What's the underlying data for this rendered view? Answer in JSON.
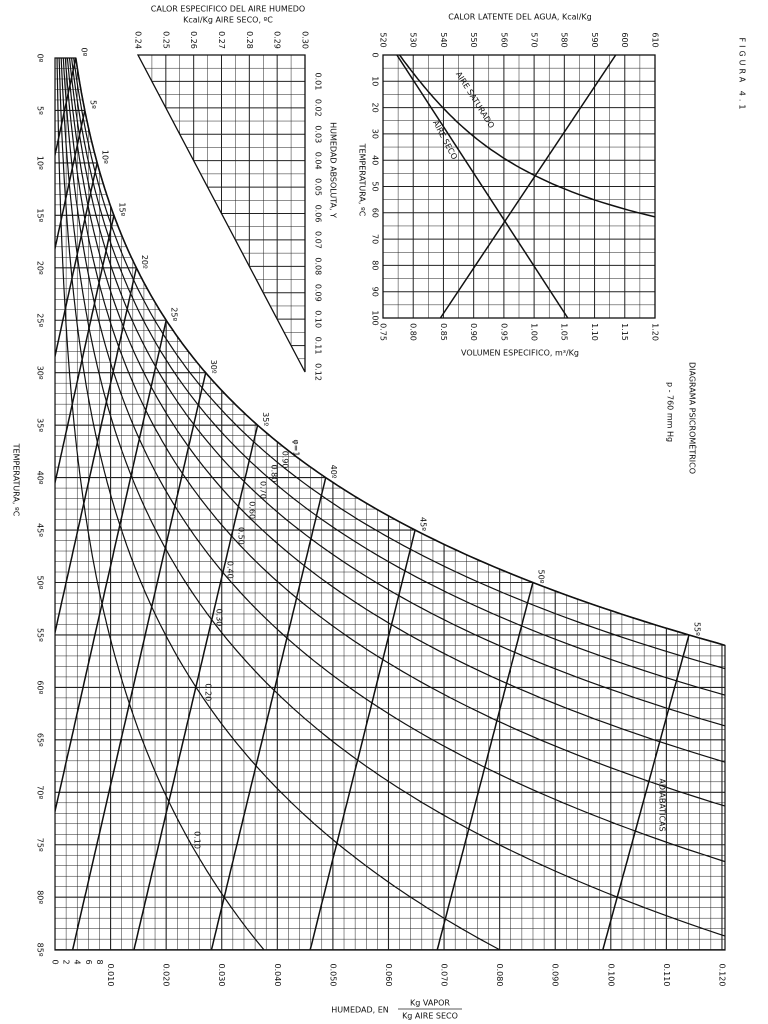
{
  "figure_label": "FIGURA 4.1",
  "title": "DIAGRAMA PSICROMÉTRICO",
  "subtitle": "p - 760 mm Hg",
  "main": {
    "y_axis_label": "TEMPERATURA, ºC",
    "x_axis_label": "HUMEDAD, EN",
    "x_axis_unit_num": "Kg VAPOR",
    "x_axis_unit_den": "Kg AIRE SECO",
    "temperature_ticks": [
      "0º",
      "5º",
      "10º",
      "15º",
      "20º",
      "25º",
      "30º",
      "35º",
      "40º",
      "45º",
      "50º",
      "55º",
      "60º",
      "65º",
      "70º",
      "75º",
      "80º",
      "85º"
    ],
    "humidity_small_ticks": [
      "0",
      "2",
      "4",
      "6",
      "8"
    ],
    "humidity_ticks": [
      "0.010",
      "0.020",
      "0.030",
      "0.040",
      "0.050",
      "0.060",
      "0.070",
      "0.080",
      "0.090",
      "0.100",
      "0.110",
      "0.120"
    ],
    "rh_labels": [
      "φ=1",
      "0.90",
      "0.80",
      "0.70",
      "0.60",
      "0.50",
      "0.40",
      "0.30",
      "0.20",
      "0.10"
    ],
    "saturation_labels": [
      "0º",
      "5º",
      "10º",
      "15º",
      "20º",
      "25º",
      "30º",
      "35º",
      "40º",
      "45º",
      "50º",
      "55º"
    ],
    "adiabatic_label": "ADIABATICAS"
  },
  "specific_heat": {
    "title": "CALOR ESPECIFICO DEL AIRE HUMEDO",
    "unit": "Kcal/Kg AIRE SECO, ºC",
    "heat_ticks": [
      "0.24",
      "0.25",
      "0.26",
      "0.27",
      "0.28",
      "0.29",
      "0.30"
    ],
    "humidity_label": "HUMEDAD ABSOLUTA, Y",
    "humidity_ticks": [
      "0.01",
      "0.02",
      "0.03",
      "0.04",
      "0.05",
      "0.06",
      "0.07",
      "0.08",
      "0.09",
      "0.10",
      "0.11",
      "0.12"
    ]
  },
  "latent": {
    "title": "CALOR LATENTE DEL AGUA, Kcal/Kg",
    "latent_ticks": [
      "520",
      "530",
      "540",
      "550",
      "560",
      "570",
      "580",
      "590",
      "600",
      "610"
    ],
    "temperature_label": "TEMPERATURA, ºC",
    "temperature_ticks": [
      "0",
      "10",
      "20",
      "30",
      "40",
      "50",
      "60",
      "70",
      "80",
      "90",
      "100"
    ],
    "volume_label": "VOLUMEN ESPECIFICO, m³/Kg",
    "volume_ticks": [
      "0.75",
      "0.80",
      "0.85",
      "0.90",
      "0.95",
      "1.00",
      "1.05",
      "1.10",
      "1.15",
      "1.20"
    ],
    "curve_labels": [
      "AIRE SATURADO",
      "AIRE SECO"
    ]
  }
}
